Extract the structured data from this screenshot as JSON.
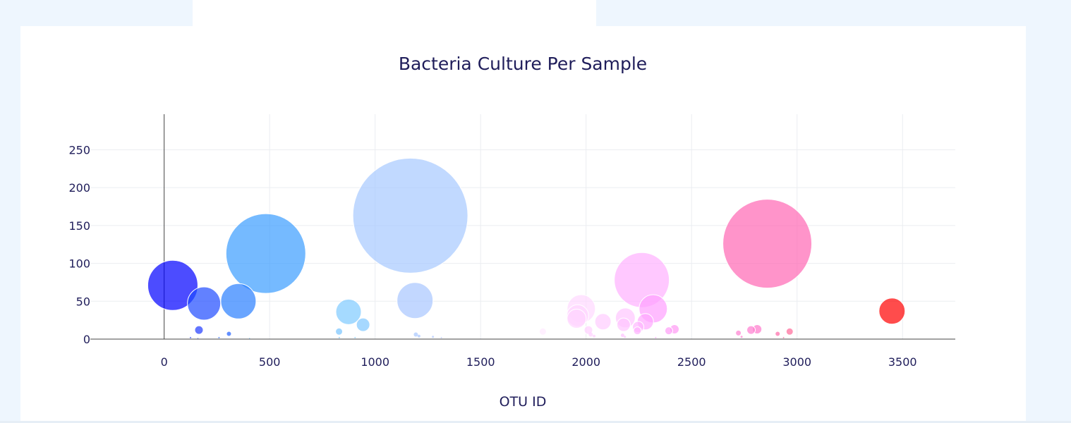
{
  "chart_data": {
    "type": "scatter",
    "title": "Bacteria Culture Per Sample",
    "xlabel": "OTU ID",
    "ylabel": "",
    "xlim": [
      -350,
      3750
    ],
    "ylim": [
      0,
      297
    ],
    "x_ticks": [
      0,
      500,
      1000,
      1500,
      2000,
      2500,
      3000,
      3500
    ],
    "y_ticks": [
      0,
      50,
      100,
      150,
      200,
      250
    ],
    "grid": true,
    "legend": "none",
    "colorscale": [
      "#0000ff",
      "#1f5bff",
      "#56a8ff",
      "#8fd2ff",
      "#b5d3ff",
      "#ffd0ff",
      "#ffb0ff",
      "#ff7fbf",
      "#ff0000"
    ],
    "marker_opacity": 0.7,
    "series": [
      {
        "points": [
          {
            "x": 41,
            "y": 71,
            "size": 71,
            "color": "#0000ff"
          },
          {
            "x": 189,
            "y": 47,
            "size": 47,
            "color": "#1f4bff"
          },
          {
            "x": 165,
            "y": 12,
            "size": 12,
            "color": "#1f3bff"
          },
          {
            "x": 307,
            "y": 7,
            "size": 7,
            "color": "#2060ff"
          },
          {
            "x": 352,
            "y": 50,
            "size": 50,
            "color": "#2a7fff"
          },
          {
            "x": 482,
            "y": 113,
            "size": 113,
            "color": "#3a9cff"
          },
          {
            "x": 829,
            "y": 10,
            "size": 10,
            "color": "#78c4ff"
          },
          {
            "x": 874,
            "y": 36,
            "size": 36,
            "color": "#7fcbff"
          },
          {
            "x": 943,
            "y": 19,
            "size": 19,
            "color": "#80c8ff"
          },
          {
            "x": 1167,
            "y": 163,
            "size": 163,
            "color": "#a6c9ff"
          },
          {
            "x": 1189,
            "y": 51,
            "size": 51,
            "color": "#a8c6ff"
          },
          {
            "x": 1193,
            "y": 6,
            "size": 6,
            "color": "#a8c8ff"
          },
          {
            "x": 1208,
            "y": 4,
            "size": 4,
            "color": "#aac6ff"
          },
          {
            "x": 1274,
            "y": 3,
            "size": 3,
            "color": "#b0c8ff"
          },
          {
            "x": 1314,
            "y": 2,
            "size": 2,
            "color": "#b8c8ff"
          },
          {
            "x": 1795,
            "y": 10,
            "size": 10,
            "color": "#ffeaff"
          },
          {
            "x": 1977,
            "y": 40,
            "size": 40,
            "color": "#ffd8ff"
          },
          {
            "x": 1960,
            "y": 31,
            "size": 31,
            "color": "#ffd6ff"
          },
          {
            "x": 1955,
            "y": 27,
            "size": 27,
            "color": "#ffd4ff"
          },
          {
            "x": 2011,
            "y": 12,
            "size": 12,
            "color": "#ffd0ff"
          },
          {
            "x": 2022,
            "y": 6,
            "size": 6,
            "color": "#ffd0ff"
          },
          {
            "x": 2038,
            "y": 4,
            "size": 4,
            "color": "#ffcfff"
          },
          {
            "x": 2080,
            "y": 23,
            "size": 23,
            "color": "#ffccff"
          },
          {
            "x": 2186,
            "y": 28,
            "size": 28,
            "color": "#ffc6ff"
          },
          {
            "x": 2178,
            "y": 19,
            "size": 19,
            "color": "#ffc4ff"
          },
          {
            "x": 2173,
            "y": 5,
            "size": 5,
            "color": "#ffc0ff"
          },
          {
            "x": 2184,
            "y": 3,
            "size": 3,
            "color": "#ffc0ff"
          },
          {
            "x": 2264,
            "y": 78,
            "size": 78,
            "color": "#ffb0ff"
          },
          {
            "x": 2247,
            "y": 16,
            "size": 16,
            "color": "#ffb8ff"
          },
          {
            "x": 2243,
            "y": 11,
            "size": 11,
            "color": "#ffb4ff"
          },
          {
            "x": 2281,
            "y": 23,
            "size": 23,
            "color": "#ffa8ff"
          },
          {
            "x": 2318,
            "y": 40,
            "size": 40,
            "color": "#ffa0ff"
          },
          {
            "x": 2392,
            "y": 11,
            "size": 11,
            "color": "#ff9cf8"
          },
          {
            "x": 2419,
            "y": 13,
            "size": 13,
            "color": "#ff98f4"
          },
          {
            "x": 2722,
            "y": 8,
            "size": 8,
            "color": "#ff7fd2"
          },
          {
            "x": 2737,
            "y": 3,
            "size": 3,
            "color": "#ff80cc"
          },
          {
            "x": 2782,
            "y": 12,
            "size": 12,
            "color": "#ff7cd0"
          },
          {
            "x": 2811,
            "y": 13,
            "size": 13,
            "color": "#ff78cc"
          },
          {
            "x": 2859,
            "y": 126,
            "size": 126,
            "color": "#ff66b3"
          },
          {
            "x": 2908,
            "y": 7,
            "size": 7,
            "color": "#ff6aa8"
          },
          {
            "x": 2936,
            "y": 2,
            "size": 2,
            "color": "#ff6aa0"
          },
          {
            "x": 2965,
            "y": 10,
            "size": 10,
            "color": "#ff6898"
          },
          {
            "x": 3450,
            "y": 37,
            "size": 37,
            "color": "#ff0000"
          },
          {
            "x": 125,
            "y": 2,
            "size": 2,
            "color": "#1f3bff"
          },
          {
            "x": 160,
            "y": 1,
            "size": 1,
            "color": "#1f3bff"
          },
          {
            "x": 260,
            "y": 2,
            "size": 2,
            "color": "#2060ff"
          },
          {
            "x": 405,
            "y": 1,
            "size": 1,
            "color": "#3a9cff"
          },
          {
            "x": 830,
            "y": 2,
            "size": 2,
            "color": "#78c4ff"
          },
          {
            "x": 905,
            "y": 2,
            "size": 2,
            "color": "#80c8ff"
          },
          {
            "x": 2330,
            "y": 2,
            "size": 2,
            "color": "#ffa0ff"
          }
        ]
      }
    ]
  }
}
